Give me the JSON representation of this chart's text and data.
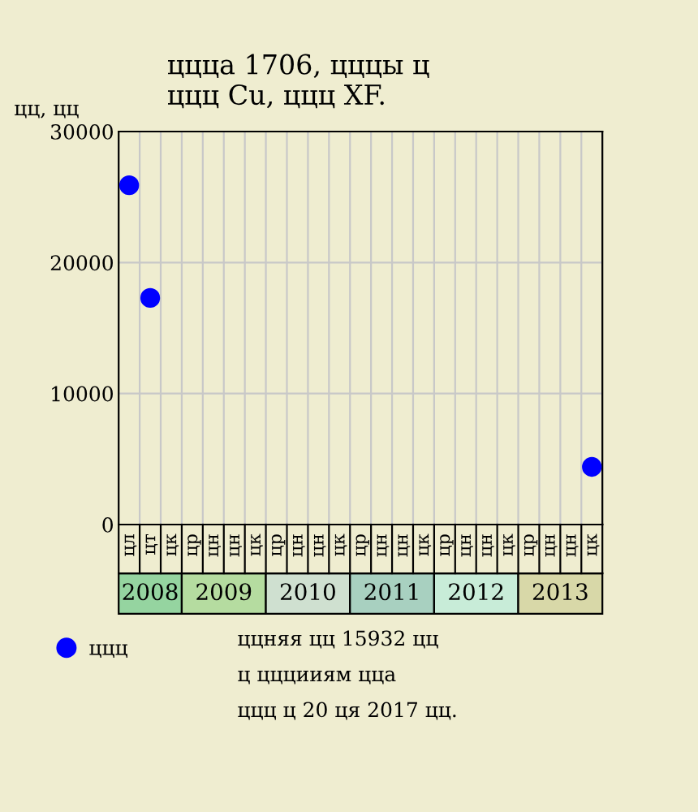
{
  "chart_data": {
    "type": "scatter",
    "title": "ццца 1706, цццы ц\nццц Cu, ццц XF.",
    "ylabel": "цц, цц",
    "categories": [
      "цл",
      "цт",
      "цк",
      "цр",
      "цн",
      "цн",
      "цк",
      "цр",
      "цн",
      "цн",
      "цк",
      "цр",
      "цн",
      "цн",
      "цк",
      "цр",
      "цн",
      "цн",
      "цк",
      "цр",
      "цн",
      "цн",
      "цк"
    ],
    "series": [
      {
        "name": "ццц",
        "color": "#0000ff",
        "values": [
          25900,
          17300,
          null,
          null,
          null,
          null,
          null,
          null,
          null,
          null,
          null,
          null,
          null,
          null,
          null,
          null,
          null,
          null,
          null,
          null,
          null,
          null,
          4400
        ]
      }
    ],
    "ylim": [
      0,
      30000
    ],
    "yticks": [
      0,
      10000,
      20000,
      30000
    ],
    "grid": true,
    "marker": "circle",
    "legend": "bottom left",
    "annotations": [
      "2008",
      "2009",
      "2010",
      "2011",
      "2012",
      "2013",
      "ццняя цц 15932 цц",
      "ц цццииям цца",
      "ццц ц 20 ця 2017 цц."
    ]
  }
}
